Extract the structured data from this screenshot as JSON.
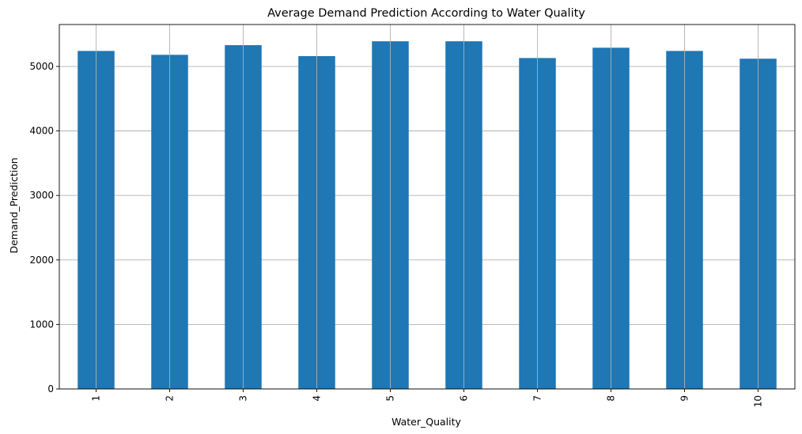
{
  "chart_data": {
    "type": "bar",
    "title": "Average Demand Prediction According to Water Quality",
    "xlabel": "Water_Quality",
    "ylabel": "Demand_Prediction",
    "categories": [
      "1",
      "2",
      "3",
      "4",
      "5",
      "6",
      "7",
      "8",
      "9",
      "10"
    ],
    "values": [
      5240,
      5180,
      5330,
      5160,
      5390,
      5390,
      5130,
      5290,
      5240,
      5120
    ],
    "ylim": [
      0,
      5650
    ],
    "yticks": [
      0,
      1000,
      2000,
      3000,
      4000,
      5000
    ],
    "grid": true,
    "bar_color": "#1f77b4",
    "x_tick_rotation": "vertical"
  }
}
